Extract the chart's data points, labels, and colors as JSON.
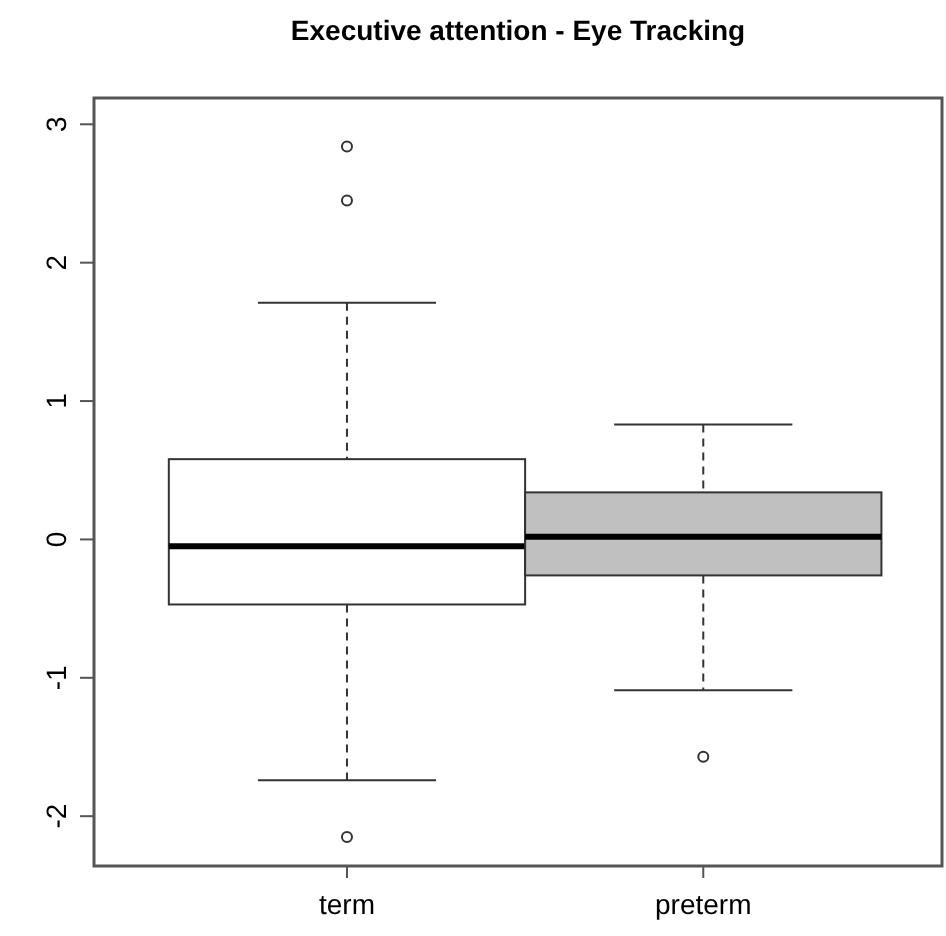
{
  "chart_data": {
    "type": "box",
    "title": "Executive attention - Eye Tracking",
    "categories": [
      "term",
      "preterm"
    ],
    "colors": [
      "#ffffff",
      "#c0c0c0"
    ],
    "boxes": [
      {
        "low": -1.74,
        "q1": -0.47,
        "median": -0.05,
        "q3": 0.58,
        "high": 1.71,
        "outliers": [
          2.84,
          2.45,
          -2.15
        ]
      },
      {
        "low": -1.09,
        "q1": -0.26,
        "median": 0.02,
        "q3": 0.34,
        "high": 0.83,
        "outliers": [
          -1.57
        ]
      }
    ],
    "ylim": [
      -2.36,
      3.19
    ],
    "yticks": [
      -2,
      -1,
      0,
      1,
      2,
      3
    ]
  }
}
